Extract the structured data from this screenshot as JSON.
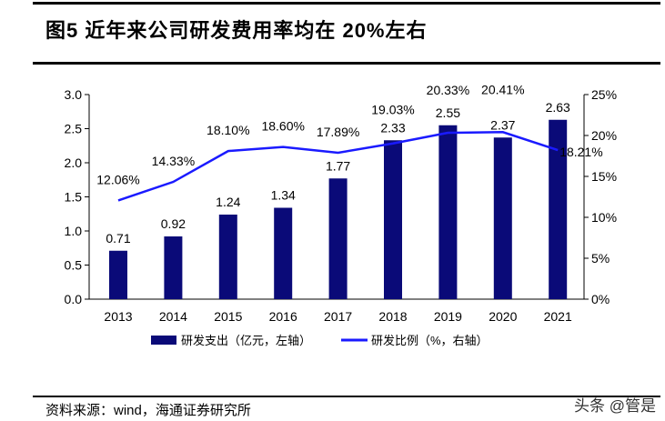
{
  "title": "图5  近年来公司研发费用率均在 20%左右",
  "source": "资料来源：wind，海通证券研究所",
  "watermark": "头条 @管是",
  "chart_data": {
    "type": "bar+line",
    "categories": [
      "2013",
      "2014",
      "2015",
      "2016",
      "2017",
      "2018",
      "2019",
      "2020",
      "2021"
    ],
    "series": [
      {
        "name": "研发支出（亿元，左轴）",
        "type": "bar",
        "axis": "left",
        "color": "#0a0a78",
        "values": [
          0.71,
          0.92,
          1.24,
          1.34,
          1.77,
          2.33,
          2.55,
          2.37,
          2.63
        ],
        "labels": [
          "0.71",
          "0.92",
          "1.24",
          "1.34",
          "1.77",
          "2.33",
          "2.55",
          "2.37",
          "2.63"
        ]
      },
      {
        "name": "研发比例（%，右轴）",
        "type": "line",
        "axis": "right",
        "color": "#1a1aff",
        "values": [
          12.06,
          14.33,
          18.1,
          18.6,
          17.89,
          19.03,
          20.33,
          20.41,
          18.21
        ],
        "labels": [
          "12.06%",
          "14.33%",
          "18.10%",
          "18.60%",
          "17.89%",
          "19.03%",
          "20.33%",
          "20.41%",
          "18.21%"
        ]
      }
    ],
    "left_axis": {
      "ylim": [
        0,
        3.0
      ],
      "ticks": [
        "0.0",
        "0.5",
        "1.0",
        "1.5",
        "2.0",
        "2.5",
        "3.0"
      ]
    },
    "right_axis": {
      "ylim": [
        0,
        25
      ],
      "ticks": [
        "0%",
        "5%",
        "10%",
        "15%",
        "20%",
        "25%"
      ]
    },
    "grid": false,
    "legend_position": "bottom"
  }
}
